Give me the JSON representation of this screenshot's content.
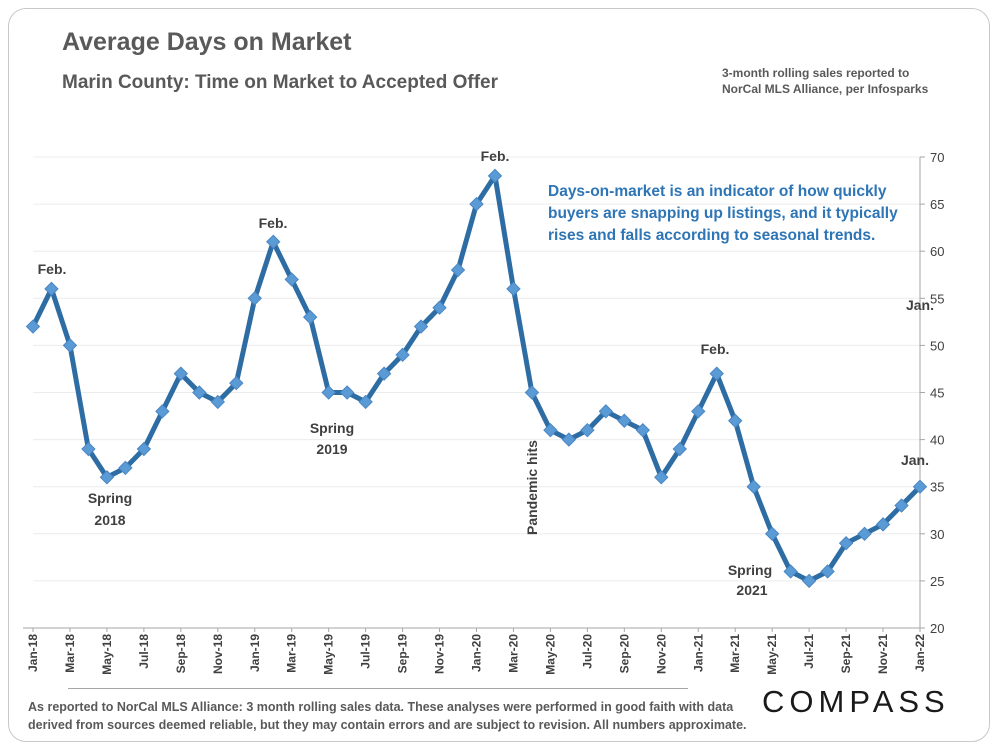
{
  "header": {
    "title": "Average Days on Market",
    "subtitle": "Marin County: Time on Market to Accepted Offer",
    "source_note": "3-month rolling sales reported to NorCal MLS Alliance, per Infosparks"
  },
  "footer": {
    "text": "As reported to NorCal MLS Alliance: 3 month rolling sales data. These analyses were performed in good faith with data derived from sources deemed reliable, but they may contain errors and are subject to revision. All numbers approximate.",
    "logo": "COMPASS"
  },
  "callout": {
    "lines": [
      "Days-on-market is an indicator of how quickly",
      "buyers are snapping up listings, and it typically",
      "rises and falls according to seasonal trends."
    ]
  },
  "colors": {
    "line": "#2e6da4",
    "marker": "#5b9bd5",
    "grid": "#ececec",
    "axis": "#a6a6a6"
  },
  "chart_data": {
    "type": "line",
    "title": "Average Days on Market",
    "xlabel": "",
    "ylabel": "",
    "ylim": [
      20,
      70
    ],
    "yticks": [
      20,
      25,
      30,
      35,
      40,
      45,
      50,
      55,
      60,
      65,
      70
    ],
    "y_axis_side": "right",
    "grid": true,
    "x": [
      "Jan-18",
      "Feb-18",
      "Mar-18",
      "Apr-18",
      "May-18",
      "Jun-18",
      "Jul-18",
      "Aug-18",
      "Sep-18",
      "Oct-18",
      "Nov-18",
      "Dec-18",
      "Jan-19",
      "Feb-19",
      "Mar-19",
      "Apr-19",
      "May-19",
      "Jun-19",
      "Jul-19",
      "Aug-19",
      "Sep-19",
      "Oct-19",
      "Nov-19",
      "Dec-19",
      "Jan-20",
      "Feb-20",
      "Mar-20",
      "Apr-20",
      "May-20",
      "Jun-20",
      "Jul-20",
      "Aug-20",
      "Sep-20",
      "Oct-20",
      "Nov-20",
      "Dec-20",
      "Jan-21",
      "Feb-21",
      "Mar-21",
      "Apr-21",
      "May-21",
      "Jun-21",
      "Jul-21",
      "Aug-21",
      "Sep-21",
      "Oct-21",
      "Nov-21",
      "Dec-21",
      "Jan-22"
    ],
    "tick_labels": [
      "Jan-18",
      "Mar-18",
      "May-18",
      "Jul-18",
      "Sep-18",
      "Nov-18",
      "Jan-19",
      "Mar-19",
      "May-19",
      "Jul-19",
      "Sep-19",
      "Nov-19",
      "Jan-20",
      "Mar-20",
      "May-20",
      "Jul-20",
      "Sep-20",
      "Nov-20",
      "Jan-21",
      "Mar-21",
      "May-21",
      "Jul-21",
      "Sep-21",
      "Nov-21",
      "Jan-22"
    ],
    "series": [
      {
        "name": "Average Days on Market",
        "values": [
          52,
          56,
          50,
          39,
          36,
          37,
          39,
          43,
          47,
          45,
          44,
          46,
          55,
          61,
          57,
          53,
          45,
          45,
          44,
          47,
          49,
          52,
          54,
          58,
          65,
          68,
          56,
          45,
          41,
          40,
          41,
          43,
          42,
          41,
          36,
          39,
          43,
          47,
          42,
          35,
          30,
          26,
          25,
          26,
          29,
          30,
          31,
          33,
          35
        ]
      }
    ],
    "annotations": [
      {
        "text": "Feb.",
        "x": "Feb-18"
      },
      {
        "text": "Spring",
        "x": "May-18"
      },
      {
        "text": "2018",
        "x": "May-18"
      },
      {
        "text": "Feb.",
        "x": "Feb-19"
      },
      {
        "text": "Spring",
        "x": "May-19"
      },
      {
        "text": "2019",
        "x": "May-19"
      },
      {
        "text": "Feb.",
        "x": "Feb-20"
      },
      {
        "text": "Pandemic hits",
        "x": "Mar-20"
      },
      {
        "text": "Feb.",
        "x": "Feb-21"
      },
      {
        "text": "Spring",
        "x": "Jun-21"
      },
      {
        "text": "2021",
        "x": "Jun-21"
      },
      {
        "text": "Jan.",
        "x": "Jan-22"
      },
      {
        "text": "Jan.",
        "x": "Jan-22"
      }
    ]
  }
}
